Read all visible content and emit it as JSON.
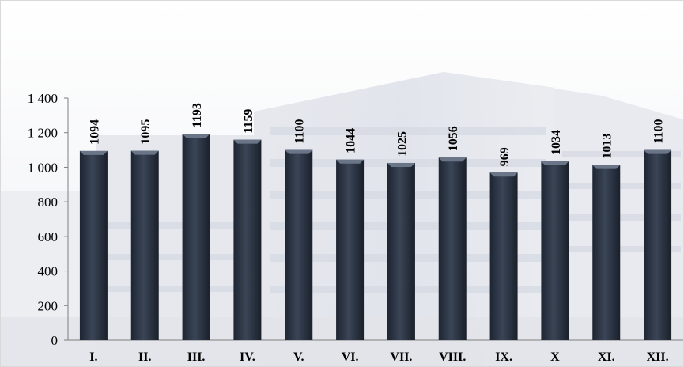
{
  "chart_data": {
    "type": "bar",
    "title": "",
    "xlabel": "",
    "ylabel": "",
    "categories": [
      "I.",
      "II.",
      "III.",
      "IV.",
      "V.",
      "VI.",
      "VII.",
      "VIII.",
      "IX.",
      "X",
      "XI.",
      "XII."
    ],
    "values": [
      1094,
      1095,
      1193,
      1159,
      1100,
      1044,
      1025,
      1056,
      969,
      1034,
      1013,
      1100
    ],
    "data_labels": [
      "1094",
      "1095",
      "1193",
      "1159",
      "1100",
      "1044",
      "1025",
      "1056",
      "969",
      "1034",
      "1013",
      "1100"
    ],
    "ylim": [
      0,
      1400
    ],
    "yticks": [
      0,
      200,
      400,
      600,
      800,
      1000,
      1200,
      1400
    ],
    "ytick_labels": [
      "0",
      "200",
      "400",
      "600",
      "800",
      "1 000",
      "1 200",
      "1 400"
    ],
    "grid": false,
    "legend": "none",
    "bar_color": "#2b3444",
    "bar_highlight_color": "#6a7688",
    "background": "faded photo of an office building"
  }
}
